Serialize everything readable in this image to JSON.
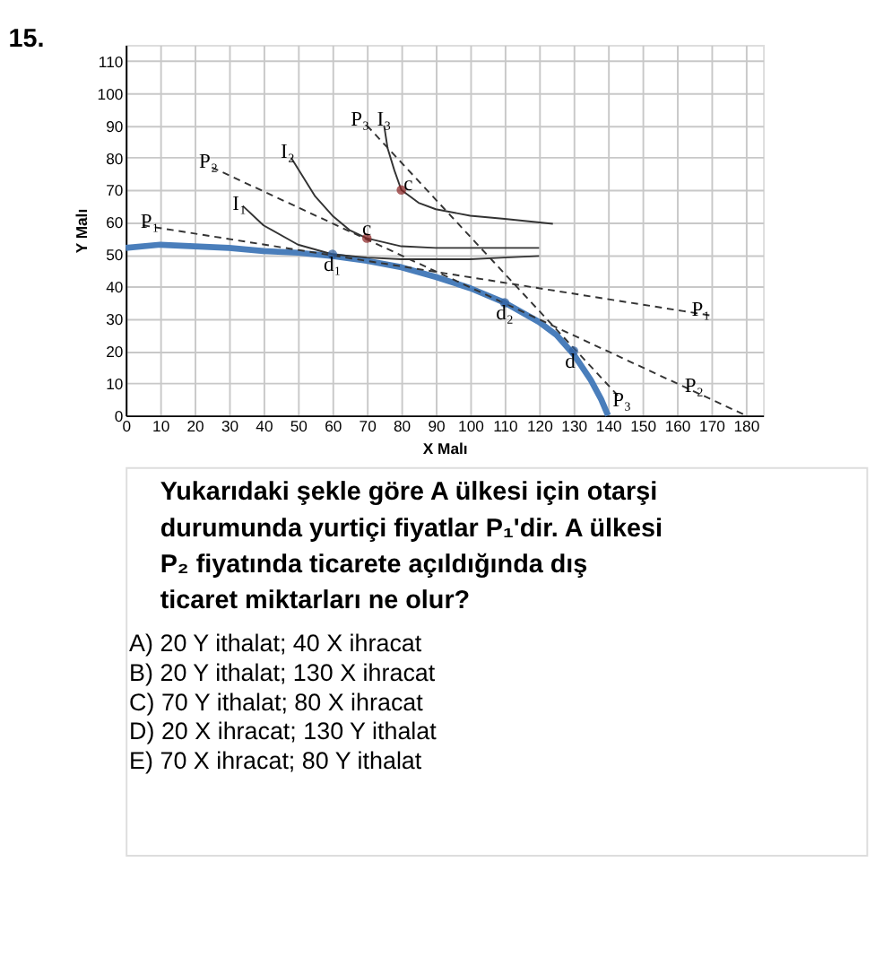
{
  "chart_data": {
    "type": "line",
    "title": "15.",
    "xlabel": "X Malı",
    "ylabel": "Y Malı",
    "xlim": [
      0,
      185
    ],
    "ylim": [
      0,
      115
    ],
    "xticks": [
      0,
      10,
      20,
      30,
      40,
      50,
      60,
      70,
      80,
      90,
      100,
      110,
      120,
      130,
      140,
      150,
      160,
      170,
      180
    ],
    "yticks": [
      0,
      10,
      20,
      30,
      40,
      50,
      60,
      70,
      80,
      90,
      100,
      110
    ],
    "grid": true,
    "series": [
      {
        "color": "#4a7ebb",
        "line_style": "solid",
        "x": [
          0,
          10,
          20,
          30,
          40,
          50,
          60,
          70,
          80,
          90,
          100,
          110,
          120,
          125,
          130,
          135,
          138,
          140
        ],
        "values": [
          52,
          53,
          52.5,
          52,
          51,
          50.5,
          49.5,
          48,
          46,
          43,
          39.5,
          35,
          29,
          25,
          19,
          11,
          5,
          0
        ]
      },
      {
        "color": "#333333",
        "line_style": "dashed",
        "x": [
          5,
          170
        ],
        "values": [
          59,
          31
        ]
      },
      {
        "color": "#333333",
        "line_style": "dashed",
        "x": [
          25,
          180
        ],
        "values": [
          77,
          0
        ]
      },
      {
        "color": "#333333",
        "line_style": "dashed",
        "x": [
          70,
          143
        ],
        "values": [
          90,
          6
        ]
      },
      {
        "color": "#333333",
        "line_style": "solid",
        "x": [
          34,
          40,
          50,
          60,
          70,
          80,
          90,
          100,
          110,
          120
        ],
        "values": [
          65,
          59,
          53,
          50,
          49,
          48.5,
          48.5,
          48.5,
          49,
          49.5
        ]
      },
      {
        "color": "#333333",
        "line_style": "solid",
        "x": [
          48,
          55,
          60,
          65,
          70,
          80,
          90,
          100,
          120
        ],
        "values": [
          80,
          68,
          62,
          57.5,
          55,
          52.5,
          52,
          52,
          52
        ]
      },
      {
        "color": "#333333",
        "line_style": "solid",
        "x": [
          75,
          76,
          78,
          80,
          85,
          90,
          100,
          110,
          124
        ],
        "values": [
          90,
          83,
          76,
          70,
          66,
          64,
          62,
          61,
          59.5
        ]
      },
      {
        "type": "scatter",
        "color": "#8b2323",
        "marker": "circle",
        "x": [
          70,
          80
        ],
        "values": [
          55,
          70
        ]
      },
      {
        "type": "scatter",
        "color": "#2f5f9f",
        "marker": "circle",
        "x": [
          60,
          110,
          130
        ],
        "values": [
          50,
          35,
          20
        ]
      }
    ],
    "annotations": [
      {
        "text": "P₁",
        "x": 7,
        "y": 60.5
      },
      {
        "text": "P₁",
        "x": 167,
        "y": 33
      },
      {
        "text": "P₂",
        "x": 24,
        "y": 79
      },
      {
        "text": "P₂",
        "x": 165,
        "y": 9.5
      },
      {
        "text": "P₃",
        "x": 68,
        "y": 92
      },
      {
        "text": "P₃",
        "x": 144,
        "y": 5
      },
      {
        "text": "I₁",
        "x": 33,
        "y": 66
      },
      {
        "text": "I₂",
        "x": 47,
        "y": 82
      },
      {
        "text": "I₃",
        "x": 75,
        "y": 92
      },
      {
        "text": "c",
        "x": 82,
        "y": 72
      },
      {
        "text": "c",
        "x": 70,
        "y": 58
      },
      {
        "text": "d₁",
        "x": 60,
        "y": 47
      },
      {
        "text": "d₂",
        "x": 110,
        "y": 32
      },
      {
        "text": "d",
        "x": 129,
        "y": 17
      },
      "Yukarıdaki şekle göre A ülkesi için otarşi durumunda yurtiçi fiyatlar P₁'dir. A ülkesi P₂ fiyatında ticarete açıldığında dış ticaret miktarları ne olur?",
      "A)  20 Y ithalat; 40 X ihracat",
      "B)  20 Y ithalat; 130 X ihracat",
      "C)  70 Y ithalat; 80 X ihracat",
      "D)  20 X ihracat; 130 Y ithalat",
      "E)  70 X ihracat; 80 Y ithalat"
    ]
  }
}
